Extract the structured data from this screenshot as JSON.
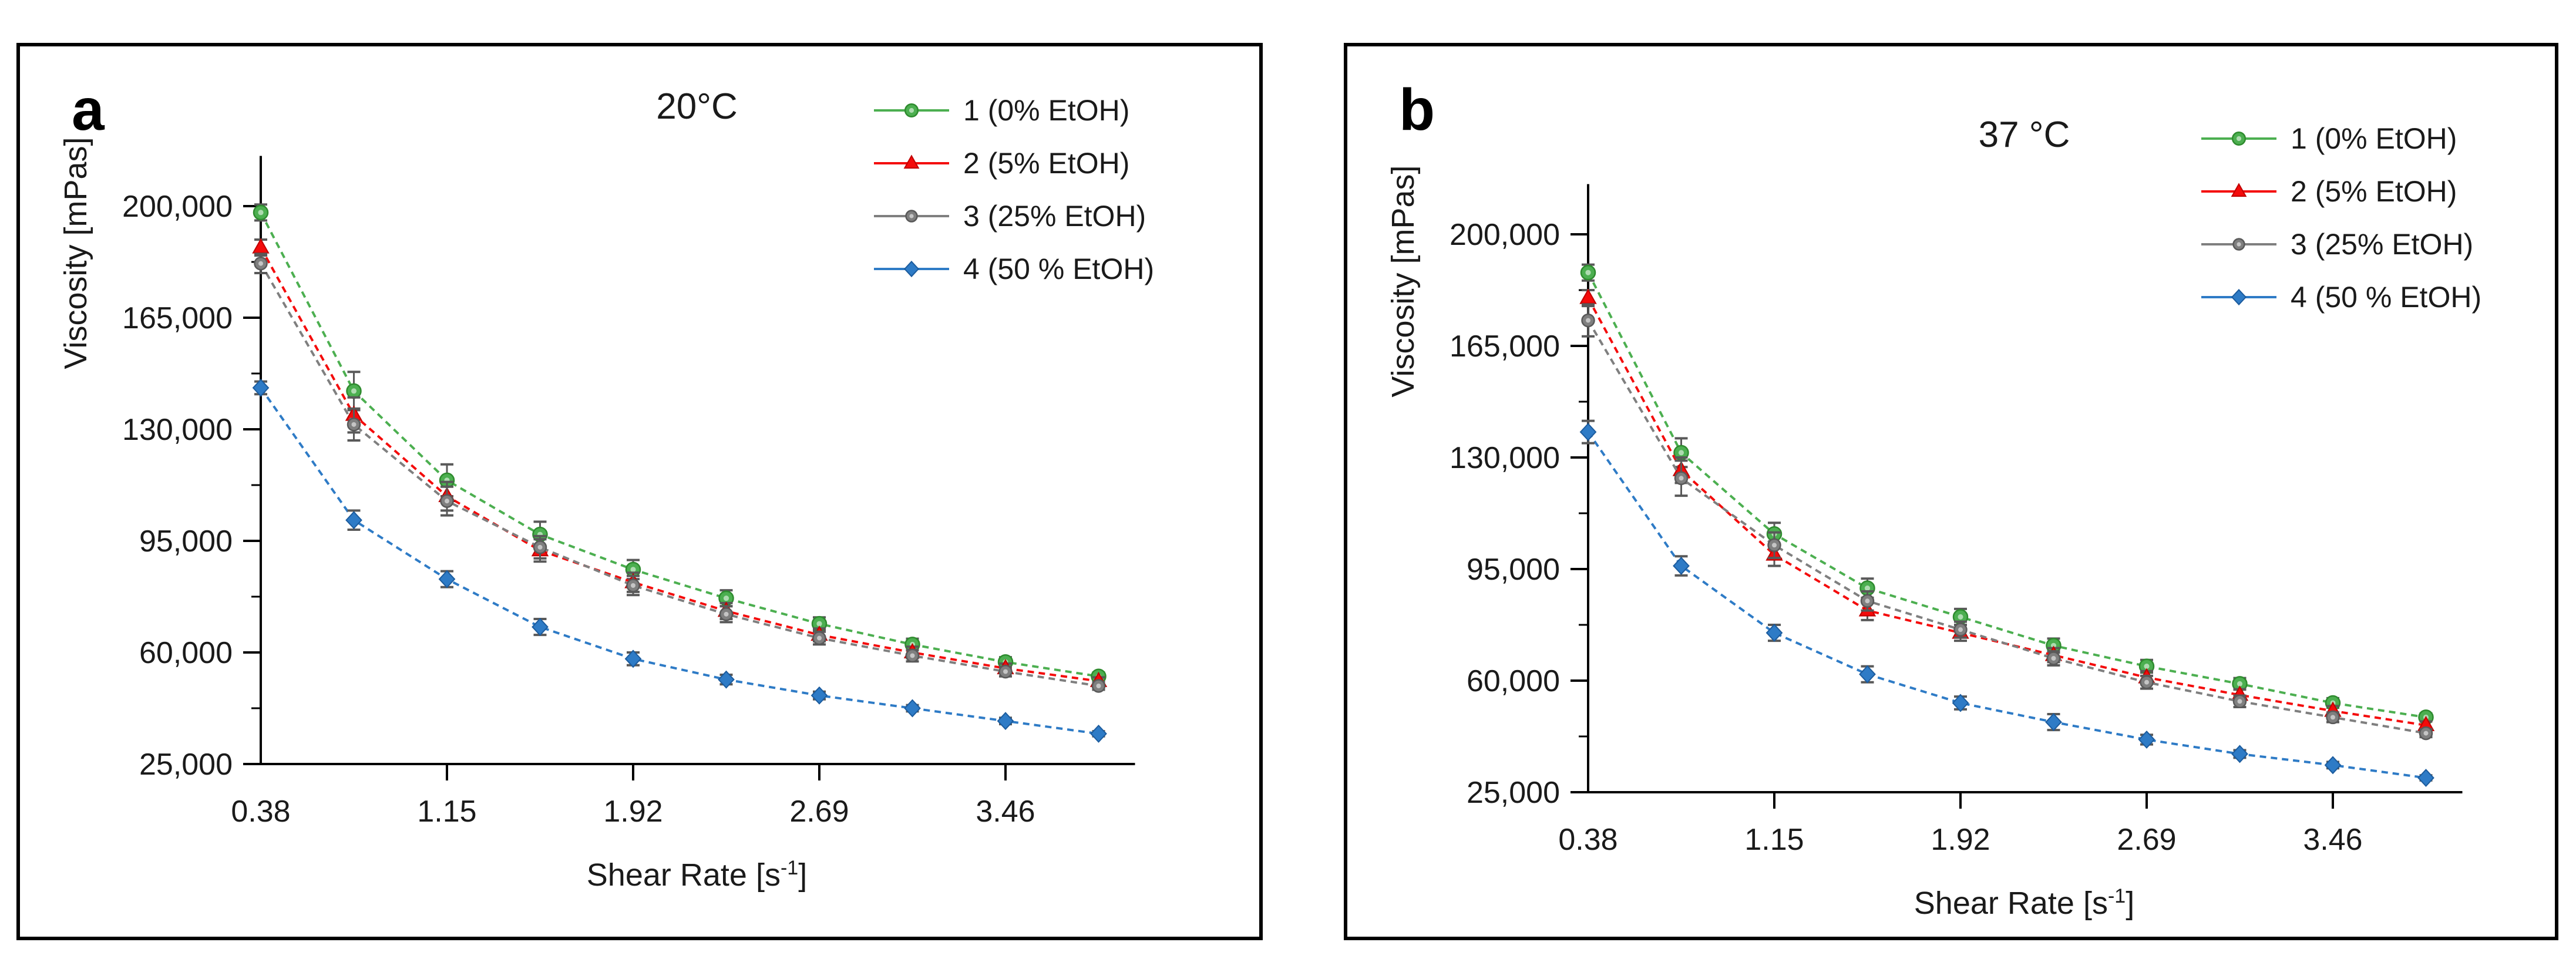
{
  "figure": {
    "background": "#ffffff",
    "panel_border_color": "#000000"
  },
  "panels": [
    {
      "letter": "a"
    },
    {
      "letter": "b"
    }
  ],
  "axis_text": {
    "y_title": "Viscosity [mPas]",
    "x_title_pre": "Shear Rate [s",
    "x_title_sup": "-1",
    "x_title_post": "]"
  },
  "legend": {
    "items": [
      {
        "label": "1 (0% EtOH)",
        "color": "#4CAF50",
        "edge": "#2E8B2E",
        "marker": "circle"
      },
      {
        "label": "2 (5% EtOH)",
        "color": "#F40B0B",
        "edge": "#C00000",
        "marker": "triangle"
      },
      {
        "label": "3 (25% EtOH)",
        "color": "#7F7F7F",
        "edge": "#595959",
        "marker": "circle-small"
      },
      {
        "label": "4 (50 % EtOH)",
        "color": "#2E7BC6",
        "edge": "#1C5C9E",
        "marker": "diamond"
      }
    ]
  },
  "chart_data": [
    {
      "type": "line",
      "title": "20°C",
      "xlabel": "Shear Rate [s^-1]",
      "ylabel": "Viscosity [mPas]",
      "x": [
        0.38,
        0.77,
        1.15,
        1.54,
        1.92,
        2.31,
        2.69,
        3.08,
        3.46,
        3.85
      ],
      "xtick_labels": [
        "0.38",
        "1.15",
        "1.92",
        "2.69",
        "3.46"
      ],
      "xtick_point_indices": [
        0,
        2,
        4,
        6,
        8
      ],
      "yticks": [
        25000,
        60000,
        95000,
        130000,
        165000,
        200000
      ],
      "ytick_labels": [
        "25,000",
        "60,000",
        "95,000",
        "130,000",
        "165,000",
        "200,000"
      ],
      "ylim": [
        25000,
        219000
      ],
      "grid": false,
      "legend_position": "top-right",
      "series": [
        {
          "name": "1 (0% EtOH)",
          "color": "#4CAF50",
          "edge": "#2E8B2E",
          "marker": "circle",
          "values": [
            198000,
            142000,
            114000,
            97000,
            86000,
            77000,
            69000,
            62500,
            57000,
            52500
          ],
          "errors": [
            2500,
            6000,
            5000,
            4000,
            3000,
            2500,
            2000,
            1800,
            1500,
            1200
          ]
        },
        {
          "name": "2 (5% EtOH)",
          "color": "#F40B0B",
          "edge": "#C00000",
          "marker": "triangle",
          "values": [
            187000,
            134500,
            109000,
            92000,
            82000,
            73000,
            65500,
            60000,
            55000,
            51000
          ],
          "errors": [
            2500,
            5500,
            4500,
            3500,
            3000,
            2500,
            2000,
            1800,
            1500,
            1200
          ]
        },
        {
          "name": "3 (25% EtOH)",
          "color": "#7F7F7F",
          "edge": "#595959",
          "marker": "circle-small",
          "values": [
            182000,
            131500,
            107500,
            93000,
            81000,
            72000,
            64500,
            59000,
            54000,
            49500
          ],
          "errors": [
            3000,
            5000,
            4500,
            3500,
            3000,
            2500,
            2000,
            1800,
            1500,
            1200
          ]
        },
        {
          "name": "4 (50 % EtOH)",
          "color": "#2E7BC6",
          "edge": "#1C5C9E",
          "marker": "diamond",
          "values": [
            143000,
            101500,
            83000,
            68000,
            58000,
            51500,
            46500,
            42500,
            38500,
            34500
          ],
          "errors": [
            2000,
            3000,
            2500,
            2500,
            2000,
            1500,
            1200,
            1000,
            1000,
            800
          ]
        }
      ]
    },
    {
      "type": "line",
      "title": "37 °C",
      "xlabel": "Shear Rate [s^-1]",
      "ylabel": "Viscosity [mPas]",
      "x": [
        0.38,
        0.77,
        1.15,
        1.54,
        1.92,
        2.31,
        2.69,
        3.08,
        3.46,
        3.85
      ],
      "xtick_labels": [
        "0.38",
        "1.15",
        "1.92",
        "2.69",
        "3.46"
      ],
      "xtick_point_indices": [
        0,
        2,
        4,
        6,
        8
      ],
      "yticks": [
        25000,
        60000,
        95000,
        130000,
        165000,
        200000
      ],
      "ytick_labels": [
        "25,000",
        "60,000",
        "95,000",
        "130,000",
        "165,000",
        "200,000"
      ],
      "ylim": [
        25000,
        219000
      ],
      "grid": false,
      "legend_position": "top-right",
      "series": [
        {
          "name": "1 (0% EtOH)",
          "color": "#4CAF50",
          "edge": "#2E8B2E",
          "marker": "circle",
          "values": [
            188000,
            131500,
            106000,
            89000,
            80000,
            71000,
            64500,
            59000,
            53000,
            48500
          ],
          "errors": [
            2500,
            4500,
            3500,
            3000,
            2500,
            2200,
            2000,
            1800,
            1500,
            1200
          ]
        },
        {
          "name": "2 (5% EtOH)",
          "color": "#F40B0B",
          "edge": "#C00000",
          "marker": "triangle",
          "values": [
            180000,
            126000,
            99500,
            82000,
            75000,
            68000,
            61000,
            55500,
            50500,
            46000
          ],
          "errors": [
            2500,
            4000,
            3500,
            3000,
            2500,
            2200,
            2000,
            1800,
            1500,
            1200
          ]
        },
        {
          "name": "3 (25% EtOH)",
          "color": "#7F7F7F",
          "edge": "#595959",
          "marker": "circle-small",
          "values": [
            173000,
            123500,
            102500,
            85000,
            76000,
            67000,
            59500,
            53500,
            48500,
            43500
          ],
          "errors": [
            5000,
            5500,
            4000,
            3000,
            2500,
            2200,
            2000,
            1800,
            1500,
            1200
          ]
        },
        {
          "name": "4 (50 % EtOH)",
          "color": "#2E7BC6",
          "edge": "#1C5C9E",
          "marker": "diamond",
          "values": [
            138000,
            96000,
            75000,
            62000,
            53000,
            47000,
            41500,
            37000,
            33500,
            29500
          ],
          "errors": [
            3500,
            3000,
            2500,
            2500,
            2000,
            2500,
            1500,
            1200,
            1000,
            800
          ]
        }
      ]
    }
  ]
}
